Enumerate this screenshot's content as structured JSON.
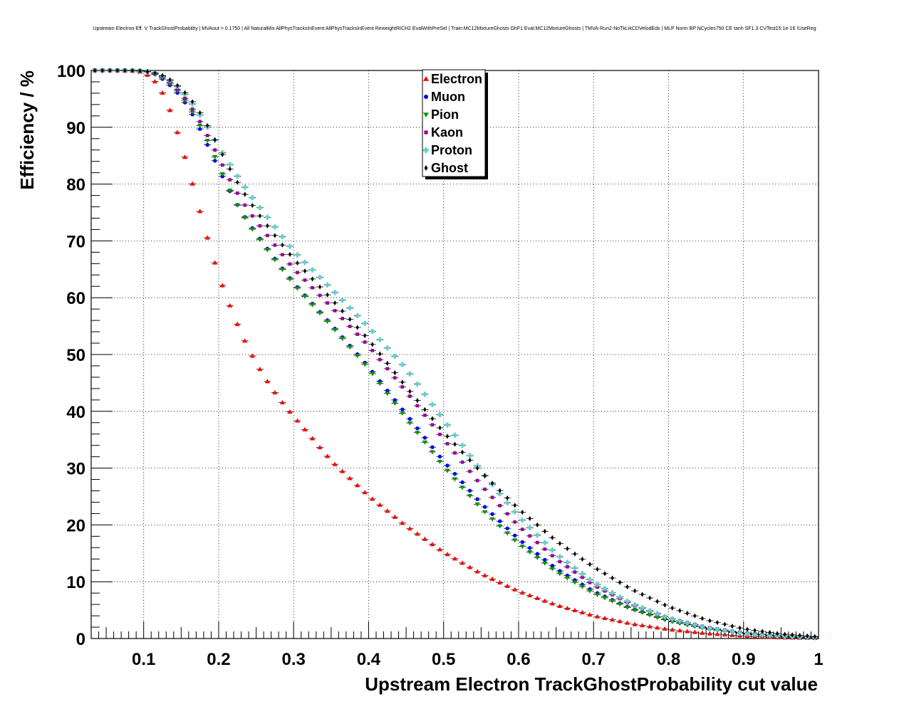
{
  "chart_data": {
    "type": "scatter",
    "title": "Upstream Electron Eff. V TrackGhostProbability | MVAout > 0.1750 | All NaturalMix AllPhysTracksInEvent:AllPhysTracksInEvent ReweightRICH2 EvalWithPreSel | Train:MC12MixtureGhosts GhF1 Eval:MC12MixtureGhosts | TMVA-Run2-NoTkLikCDVelodEdx | MLP Norm BP NCycles750 CE tanh SF1.3 CVTest15:1e-16 !UseReg",
    "xlabel": "Upstream Electron TrackGhostProbability cut value",
    "ylabel": "Efficiency / %",
    "xlim": [
      0.03,
      1.0
    ],
    "ylim": [
      0,
      100
    ],
    "xticks": [
      0.1,
      0.2,
      0.3,
      0.4,
      0.5,
      0.6,
      0.7,
      0.8,
      0.9,
      1.0
    ],
    "xtick_labels": [
      "0.1",
      "0.2",
      "0.3",
      "0.4",
      "0.5",
      "0.6",
      "0.7",
      "0.8",
      "0.9",
      "1"
    ],
    "yticks": [
      0,
      10,
      20,
      30,
      40,
      50,
      60,
      70,
      80,
      90,
      100
    ],
    "ytick_labels": [
      "0",
      "10",
      "20",
      "30",
      "40",
      "50",
      "60",
      "70",
      "80",
      "90",
      "100"
    ],
    "grid": true,
    "legend_position": "top-center",
    "x_start": 0.035,
    "x_step": 0.01,
    "x_count": 97,
    "series": [
      {
        "name": "Electron",
        "color": "#ff0000",
        "marker": "triangle-up",
        "knots_x": [
          0.035,
          0.06,
          0.09,
          0.1,
          0.11,
          0.12,
          0.13,
          0.14,
          0.15,
          0.16,
          0.17,
          0.18,
          0.19,
          0.2,
          0.21,
          0.22,
          0.23,
          0.24,
          0.25,
          0.26,
          0.27,
          0.28,
          0.29,
          0.3,
          0.32,
          0.35,
          0.4,
          0.45,
          0.5,
          0.55,
          0.6,
          0.65,
          0.7,
          0.75,
          0.8,
          0.85,
          0.9,
          0.95,
          1.0
        ],
        "knots_y": [
          100,
          100,
          99.9,
          99.6,
          98.8,
          97.3,
          94.8,
          91.2,
          87.0,
          82.5,
          77.6,
          72.8,
          68.3,
          64.0,
          60.3,
          56.9,
          53.8,
          51.0,
          48.5,
          46.3,
          44.2,
          42.4,
          40.7,
          39.1,
          36.0,
          31.3,
          25.1,
          19.8,
          15.2,
          11.4,
          8.3,
          5.9,
          4.0,
          2.6,
          1.6,
          0.9,
          0.45,
          0.15,
          0.05
        ]
      },
      {
        "name": "Muon",
        "color": "#0000ff",
        "marker": "circle",
        "knots_x": [
          0.035,
          0.08,
          0.1,
          0.11,
          0.12,
          0.13,
          0.14,
          0.15,
          0.16,
          0.17,
          0.18,
          0.19,
          0.2,
          0.21,
          0.22,
          0.23,
          0.24,
          0.25,
          0.26,
          0.28,
          0.3,
          0.35,
          0.4,
          0.45,
          0.5,
          0.55,
          0.6,
          0.65,
          0.7,
          0.75,
          0.8,
          0.85,
          0.9,
          0.95,
          1.0
        ],
        "knots_y": [
          100,
          100,
          99.9,
          99.6,
          99.0,
          98.0,
          96.8,
          95.3,
          93.4,
          91.1,
          88.3,
          85.5,
          82.7,
          80.0,
          77.5,
          75.2,
          73.2,
          71.3,
          69.5,
          66.0,
          62.6,
          55.3,
          47.8,
          39.5,
          31.2,
          23.8,
          17.5,
          12.3,
          8.3,
          5.3,
          3.2,
          1.8,
          0.9,
          0.4,
          0.2
        ]
      },
      {
        "name": "Pion",
        "color": "#009900",
        "marker": "triangle-down",
        "knots_x": [
          0.035,
          0.08,
          0.1,
          0.11,
          0.12,
          0.13,
          0.14,
          0.15,
          0.16,
          0.17,
          0.18,
          0.19,
          0.2,
          0.21,
          0.22,
          0.23,
          0.24,
          0.25,
          0.26,
          0.28,
          0.3,
          0.35,
          0.4,
          0.45,
          0.5,
          0.55,
          0.6,
          0.65,
          0.7,
          0.75,
          0.8,
          0.85,
          0.9,
          0.95,
          1.0
        ],
        "knots_y": [
          100,
          100,
          99.9,
          99.7,
          99.2,
          98.3,
          97.1,
          95.7,
          93.8,
          91.6,
          89.0,
          86.3,
          83.3,
          80.3,
          77.5,
          75.1,
          73.0,
          71.1,
          69.3,
          65.8,
          62.4,
          55.1,
          47.5,
          38.8,
          30.3,
          22.9,
          16.7,
          11.8,
          8.0,
          5.2,
          3.1,
          1.7,
          0.8,
          0.35,
          0.1
        ]
      },
      {
        "name": "Kaon",
        "color": "#990099",
        "marker": "square",
        "knots_x": [
          0.035,
          0.08,
          0.1,
          0.11,
          0.12,
          0.13,
          0.14,
          0.15,
          0.16,
          0.17,
          0.18,
          0.19,
          0.2,
          0.21,
          0.22,
          0.23,
          0.24,
          0.25,
          0.26,
          0.28,
          0.3,
          0.35,
          0.4,
          0.45,
          0.5,
          0.55,
          0.6,
          0.65,
          0.7,
          0.75,
          0.8,
          0.85,
          0.9,
          0.95,
          1.0
        ],
        "knots_y": [
          100,
          100,
          99.9,
          99.7,
          99.3,
          98.5,
          97.4,
          96.0,
          94.2,
          92.2,
          89.8,
          87.3,
          84.7,
          82.0,
          79.5,
          77.3,
          75.3,
          73.5,
          71.8,
          68.4,
          65.1,
          58.4,
          51.5,
          43.5,
          35.1,
          27.0,
          19.8,
          14.0,
          9.4,
          6.0,
          3.6,
          2.0,
          1.0,
          0.45,
          0.15
        ]
      },
      {
        "name": "Proton",
        "color": "#66cccc",
        "marker": "cross",
        "knots_x": [
          0.035,
          0.08,
          0.1,
          0.11,
          0.12,
          0.13,
          0.14,
          0.15,
          0.16,
          0.17,
          0.18,
          0.19,
          0.2,
          0.21,
          0.22,
          0.23,
          0.24,
          0.25,
          0.26,
          0.28,
          0.3,
          0.35,
          0.4,
          0.45,
          0.5,
          0.55,
          0.6,
          0.65,
          0.7,
          0.75,
          0.8,
          0.85,
          0.9,
          0.95,
          1.0
        ],
        "knots_y": [
          100,
          100,
          99.9,
          99.7,
          99.4,
          98.7,
          97.8,
          96.6,
          95.0,
          93.2,
          91.1,
          88.9,
          86.6,
          84.5,
          82.4,
          80.4,
          78.5,
          76.7,
          75.0,
          71.6,
          68.2,
          61.6,
          54.8,
          47.5,
          38.5,
          29.5,
          21.5,
          14.9,
          9.9,
          6.2,
          3.6,
          1.9,
          0.9,
          0.4,
          0.15
        ]
      },
      {
        "name": "Ghost",
        "color": "#000000",
        "marker": "diamond",
        "knots_x": [
          0.035,
          0.08,
          0.1,
          0.11,
          0.12,
          0.13,
          0.14,
          0.15,
          0.16,
          0.17,
          0.18,
          0.19,
          0.2,
          0.21,
          0.22,
          0.23,
          0.24,
          0.25,
          0.26,
          0.28,
          0.3,
          0.35,
          0.4,
          0.45,
          0.5,
          0.55,
          0.6,
          0.65,
          0.7,
          0.75,
          0.8,
          0.85,
          0.9,
          0.95,
          1.0
        ],
        "knots_y": [
          100,
          100,
          99.9,
          99.7,
          99.4,
          98.8,
          97.9,
          96.8,
          95.4,
          93.6,
          91.5,
          89.1,
          86.5,
          83.9,
          81.4,
          79.2,
          77.2,
          75.3,
          73.5,
          70.1,
          66.8,
          59.8,
          52.6,
          44.3,
          36.3,
          29.3,
          22.8,
          17.2,
          12.6,
          8.7,
          5.6,
          3.3,
          1.7,
          0.8,
          0.3
        ]
      }
    ]
  }
}
